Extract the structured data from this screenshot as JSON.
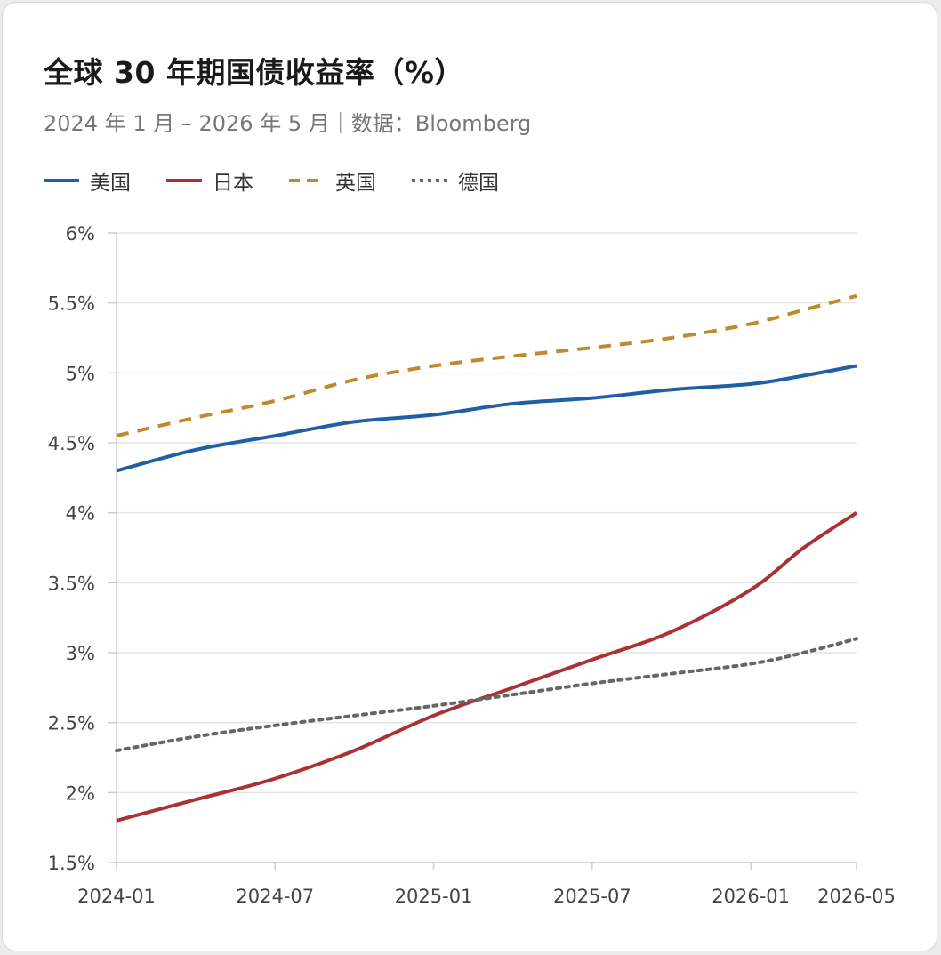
{
  "title": "全球 30 年期国债收益率（%）",
  "subtitle": "2024 年 1 月 – 2026 年 5 月｜数据：Bloomberg",
  "chart_data": {
    "type": "line",
    "x": [
      "2024-01",
      "2024-04",
      "2024-07",
      "2024-10",
      "2025-01",
      "2025-04",
      "2025-07",
      "2025-10",
      "2026-01",
      "2026-03",
      "2026-05"
    ],
    "x_ticks": [
      "2024-01",
      "2024-07",
      "2025-01",
      "2025-07",
      "2026-01",
      "2026-05"
    ],
    "y_ticks": [
      "1.5%",
      "2%",
      "2.5%",
      "3%",
      "3.5%",
      "4%",
      "4.5%",
      "5%",
      "5.5%",
      "6%"
    ],
    "ylim": [
      1.5,
      6
    ],
    "grid": true,
    "legend_position": "top-left",
    "series": [
      {
        "name": "美国",
        "color": "#1f5fa6",
        "dash": "solid",
        "values": [
          4.3,
          4.45,
          4.55,
          4.65,
          4.7,
          4.78,
          4.82,
          4.88,
          4.92,
          4.98,
          5.05
        ]
      },
      {
        "name": "日本",
        "color": "#a83236",
        "dash": "solid",
        "values": [
          1.8,
          1.95,
          2.1,
          2.3,
          2.55,
          2.75,
          2.95,
          3.15,
          3.45,
          3.75,
          4.0
        ]
      },
      {
        "name": "英国",
        "color": "#c08a2c",
        "dash": "dashed",
        "values": [
          4.55,
          4.68,
          4.8,
          4.95,
          5.05,
          5.12,
          5.18,
          5.25,
          5.35,
          5.45,
          5.55
        ]
      },
      {
        "name": "德国",
        "color": "#666666",
        "dash": "dotted",
        "values": [
          2.3,
          2.4,
          2.48,
          2.55,
          2.62,
          2.7,
          2.78,
          2.85,
          2.92,
          3.0,
          3.1
        ]
      }
    ]
  }
}
